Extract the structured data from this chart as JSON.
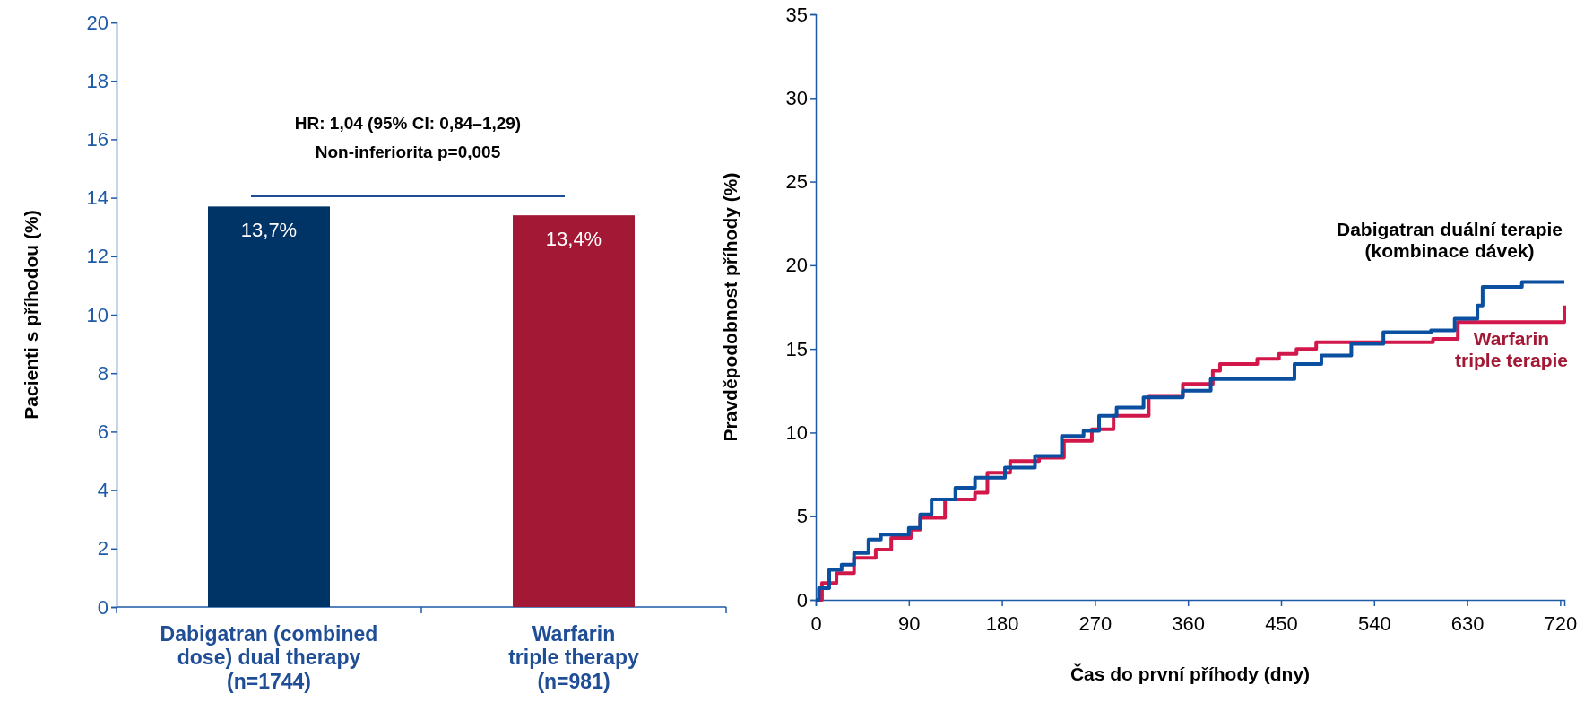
{
  "chart_data": [
    {
      "type": "bar",
      "ylabel": "Pacienti s příhodou (%)",
      "categories": [
        "Dabigatran (combined\ndose) dual therapy\n(n=1744)",
        "Warfarin\ntriple therapy\n(n=981)"
      ],
      "values": [
        13.7,
        13.4
      ],
      "colors": [
        "#003366",
        "#a31834"
      ],
      "value_labels": [
        "13,7%",
        "13,4%"
      ],
      "ylim": [
        0,
        20
      ],
      "yticks": [
        0,
        2,
        4,
        6,
        8,
        10,
        12,
        14,
        16,
        18,
        20
      ],
      "grid": false,
      "annotations": [
        "HR: 1,04 (95% CI: 0,84–1,29)",
        "Non-inferiorita p=0,005"
      ]
    },
    {
      "type": "step",
      "xlabel": "Čas do první příhody (dny)",
      "ylabel": "Pravděpodobnost příhody (%)",
      "xlim": [
        0,
        724
      ],
      "xticks": [
        0,
        90,
        180,
        270,
        360,
        450,
        540,
        630,
        720
      ],
      "ylim": [
        0,
        35
      ],
      "yticks": [
        0,
        5,
        10,
        15,
        20,
        25,
        30,
        35
      ],
      "grid": false,
      "series": [
        {
          "name": "Warfarin\ntriple terapie",
          "color": "#d2174a",
          "x": [
            0,
            6,
            20,
            37,
            58,
            73,
            92,
            101,
            125,
            154,
            166,
            188,
            216,
            240,
            267,
            288,
            322,
            355,
            384,
            391,
            427,
            448,
            465,
            484,
            597,
            621,
            724,
            724
          ],
          "values": [
            0,
            1.0,
            1.6,
            2.5,
            3.0,
            3.7,
            4.2,
            4.9,
            6.0,
            6.4,
            7.6,
            8.3,
            8.5,
            9.5,
            10.2,
            11.0,
            12.2,
            12.9,
            13.7,
            14.1,
            14.4,
            14.7,
            15.0,
            15.4,
            15.6,
            16.6,
            16.6,
            17.6
          ]
        },
        {
          "name": "Dabigatran duální terapie\n(kombinace dávek)",
          "color": "#0a4fa0",
          "x": [
            0,
            3,
            13,
            25,
            37,
            51,
            63,
            90,
            101,
            112,
            135,
            154,
            183,
            212,
            238,
            259,
            274,
            291,
            317,
            355,
            382,
            446,
            463,
            489,
            518,
            549,
            595,
            618,
            640,
            645,
            683,
            724
          ],
          "values": [
            0,
            0.7,
            1.8,
            2.1,
            2.8,
            3.6,
            3.9,
            4.3,
            5.1,
            6.0,
            6.7,
            7.3,
            7.9,
            8.6,
            9.8,
            10.1,
            11.0,
            11.5,
            12.1,
            12.5,
            13.2,
            13.2,
            14.1,
            14.6,
            15.3,
            16.0,
            16.1,
            16.8,
            17.6,
            18.7,
            19.0,
            19.0
          ]
        }
      ]
    }
  ]
}
